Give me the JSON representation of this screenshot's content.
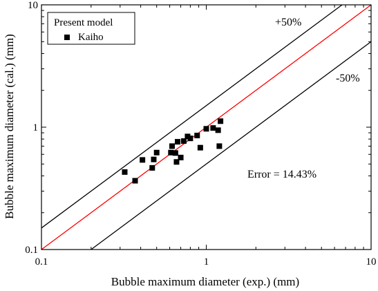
{
  "chart_data": {
    "type": "scatter",
    "title": "",
    "xlabel": "Bubble maximum diameter (exp.) (mm)",
    "ylabel": "Bubble maximum diameter (cal.) (mm)",
    "xscale": "log",
    "yscale": "log",
    "xlim": [
      0.1,
      10
    ],
    "ylim": [
      0.1,
      10
    ],
    "xticks": [
      {
        "value": 0.1,
        "label": "0.1"
      },
      {
        "value": 1,
        "label": "1"
      },
      {
        "value": 10,
        "label": "10"
      }
    ],
    "yticks": [
      {
        "value": 0.1,
        "label": "0.1"
      },
      {
        "value": 1,
        "label": "1"
      },
      {
        "value": 10,
        "label": "10"
      }
    ],
    "legend": {
      "placement": "top-left",
      "title": "Present model",
      "entries": [
        {
          "label": "Kaiho",
          "marker": "square",
          "color": "#000000"
        }
      ]
    },
    "series": [
      {
        "name": "Kaiho",
        "marker": "square",
        "color": "#000000",
        "points": [
          {
            "x": 0.32,
            "y": 0.43
          },
          {
            "x": 0.37,
            "y": 0.365
          },
          {
            "x": 0.41,
            "y": 0.54
          },
          {
            "x": 0.47,
            "y": 0.465
          },
          {
            "x": 0.48,
            "y": 0.545
          },
          {
            "x": 0.5,
            "y": 0.62
          },
          {
            "x": 0.61,
            "y": 0.62
          },
          {
            "x": 0.62,
            "y": 0.7
          },
          {
            "x": 0.65,
            "y": 0.615
          },
          {
            "x": 0.66,
            "y": 0.52
          },
          {
            "x": 0.67,
            "y": 0.76
          },
          {
            "x": 0.7,
            "y": 0.565
          },
          {
            "x": 0.73,
            "y": 0.77
          },
          {
            "x": 0.77,
            "y": 0.84
          },
          {
            "x": 0.8,
            "y": 0.81
          },
          {
            "x": 0.88,
            "y": 0.855
          },
          {
            "x": 0.92,
            "y": 0.68
          },
          {
            "x": 1.0,
            "y": 0.97
          },
          {
            "x": 1.1,
            "y": 0.985
          },
          {
            "x": 1.18,
            "y": 0.945
          },
          {
            "x": 1.2,
            "y": 0.7
          },
          {
            "x": 1.22,
            "y": 1.12
          }
        ]
      }
    ],
    "reference_lines": [
      {
        "name": "y = x",
        "factor": 1.0,
        "color": "#ff0000"
      },
      {
        "name": "+50%",
        "factor": 1.5,
        "color": "#000000",
        "label": "+50%"
      },
      {
        "name": "-50%",
        "factor": 0.5,
        "color": "#000000",
        "label": "-50%"
      }
    ],
    "annotations": [
      {
        "text": "Error = 14.43%"
      }
    ],
    "grid": false
  }
}
